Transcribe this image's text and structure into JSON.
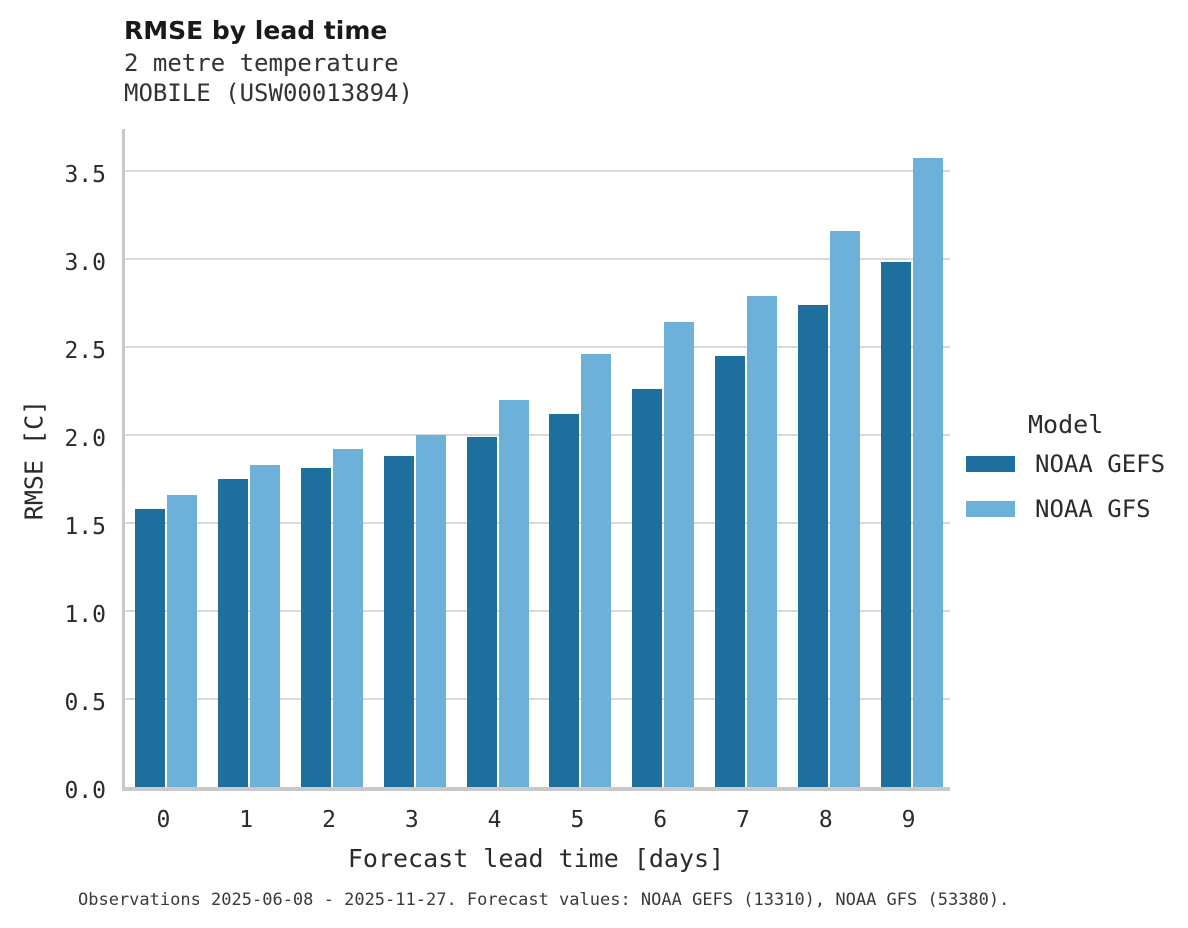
{
  "header": {
    "title": "RMSE by lead time",
    "subtitle_variable": "2 metre temperature",
    "subtitle_station": "MOBILE (USW00013894)"
  },
  "footer": {
    "note": "Observations 2025-06-08 - 2025-11-27. Forecast values: NOAA GEFS (13310), NOAA GFS (53380)."
  },
  "legend": {
    "title": "Model",
    "entries": [
      {
        "label": "NOAA GEFS",
        "color": "#1f6f9e"
      },
      {
        "label": "NOAA GFS",
        "color": "#6eb1d8"
      }
    ]
  },
  "colors": {
    "noaa_gefs": "#1f6f9e",
    "noaa_gfs": "#6eb1d8",
    "gridline": "#d9d9d9",
    "spine": "#c9c9c9",
    "text": "#2b2b2b"
  },
  "chart_data": {
    "type": "bar",
    "title": "RMSE by lead time",
    "subtitle": [
      "2 metre temperature",
      "MOBILE (USW00013894)"
    ],
    "categories": [
      "0",
      "1",
      "2",
      "3",
      "4",
      "5",
      "6",
      "7",
      "8",
      "9"
    ],
    "series": [
      {
        "name": "NOAA GEFS",
        "color": "#1f6f9e",
        "values": [
          1.58,
          1.75,
          1.81,
          1.88,
          1.99,
          2.12,
          2.26,
          2.45,
          2.74,
          2.98
        ]
      },
      {
        "name": "NOAA GFS",
        "color": "#6eb1d8",
        "values": [
          1.66,
          1.83,
          1.92,
          2.0,
          2.2,
          2.46,
          2.64,
          2.79,
          3.16,
          3.57
        ]
      }
    ],
    "xlabel": "Forecast lead time [days]",
    "ylabel": "RMSE [C]",
    "ylim": [
      0,
      3.76
    ],
    "ytick_values": [
      0.0,
      0.5,
      1.0,
      1.5,
      2.0,
      2.5,
      3.0,
      3.5
    ],
    "ytick_labels": [
      "0.0",
      "0.5",
      "1.0",
      "1.5",
      "2.0",
      "2.5",
      "3.0",
      "3.5"
    ],
    "grid": true,
    "legend": {
      "title": "Model",
      "position": "right"
    }
  }
}
